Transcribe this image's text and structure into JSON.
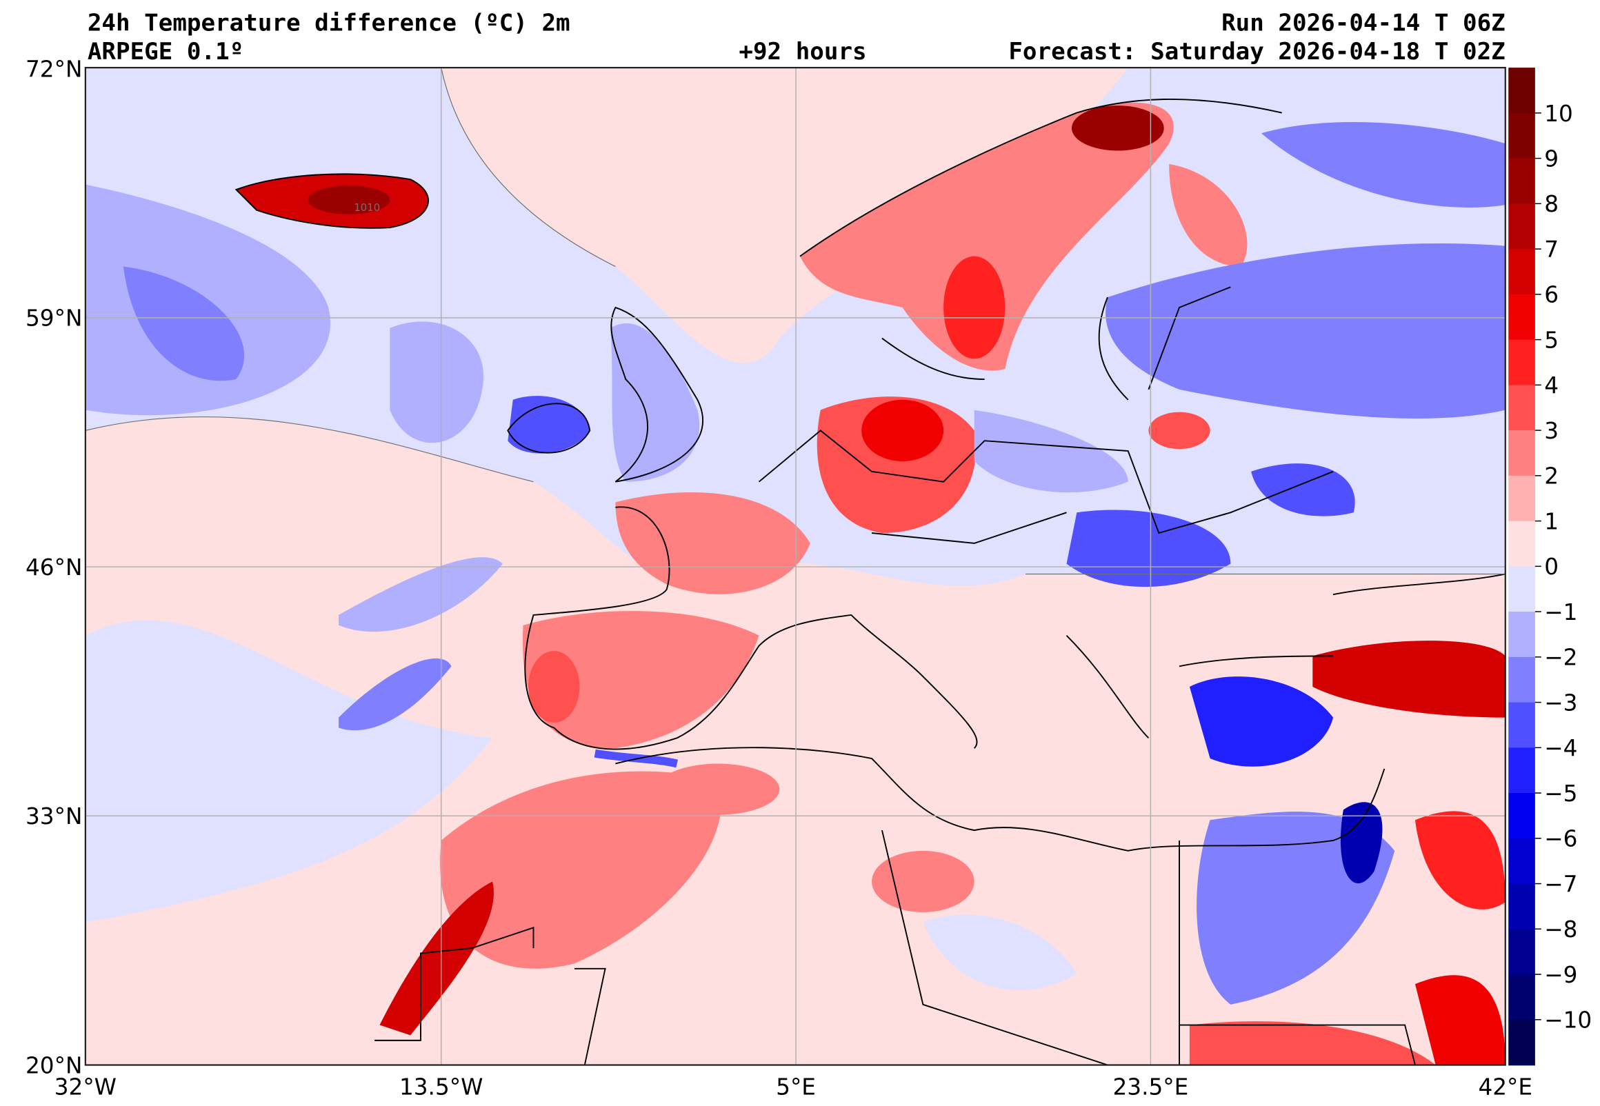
{
  "header": {
    "title": "24h Temperature difference (ºC) 2m",
    "model": "ARPEGE 0.1º",
    "lead": "+92 hours",
    "run": "Run 2026-04-14 T 06Z",
    "forecast": "Forecast: Saturday 2026-04-18 T 02Z"
  },
  "axes": {
    "lat_labels": [
      "72°N",
      "59°N",
      "46°N",
      "33°N",
      "20°N"
    ],
    "lon_labels": [
      "32°W",
      "13.5°W",
      "5°E",
      "23.5°E",
      "42°E"
    ]
  },
  "contour_label": "1010",
  "colorbar": {
    "unit": "ºC",
    "ticks": [
      "10",
      "9",
      "8",
      "7",
      "6",
      "5",
      "4",
      "3",
      "2",
      "1",
      "0",
      "−1",
      "−2",
      "−3",
      "−4",
      "−5",
      "−6",
      "−7",
      "−8",
      "−9",
      "−10"
    ],
    "colors": [
      "#6e0000",
      "#800000",
      "#9a0000",
      "#b40000",
      "#d20000",
      "#f00000",
      "#ff2020",
      "#ff5050",
      "#ff8080",
      "#ffb0b0",
      "#ffe0e0",
      "#e0e0ff",
      "#b0b0ff",
      "#8080ff",
      "#5050ff",
      "#2020ff",
      "#0000f0",
      "#0000d0",
      "#0000b0",
      "#000090",
      "#000070",
      "#000050"
    ]
  }
}
